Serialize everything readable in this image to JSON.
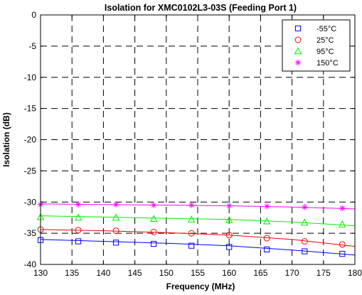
{
  "chart_data": {
    "type": "line",
    "title": "Isolation for XMC0102L3-03S (Feeding Port 1)",
    "xlabel": "Frequency (MHz)",
    "ylabel": "Isolation (dB)",
    "xlim": [
      130,
      180
    ],
    "ylim": [
      -40,
      0
    ],
    "xticks": [
      130,
      135,
      140,
      145,
      150,
      155,
      160,
      165,
      170,
      175,
      180
    ],
    "yticks": [
      0,
      -5,
      -10,
      -15,
      -20,
      -25,
      -30,
      -35,
      -40
    ],
    "xtick_labels": [
      "130",
      "135",
      "140",
      "145",
      "150",
      "155",
      "160",
      "165",
      "170",
      "175",
      "180"
    ],
    "ytick_labels": [
      "0",
      "-5",
      "-10",
      "-15",
      "-20",
      "-25",
      "-30",
      "-35",
      "-40"
    ],
    "grid": true,
    "legend_position": "top-right",
    "x": [
      130,
      136,
      142,
      148,
      154,
      160,
      166,
      172,
      178
    ],
    "series": [
      {
        "name": "-55°C",
        "color": "#0000ff",
        "marker": "square",
        "values": [
          -36.1,
          -36.3,
          -36.5,
          -36.7,
          -37.0,
          -37.2,
          -37.6,
          -37.9,
          -38.3
        ],
        "trend": [
          [
            130,
            -36.0
          ],
          [
            140,
            -36.3
          ],
          [
            150,
            -36.6
          ],
          [
            160,
            -37.0
          ],
          [
            170,
            -37.7
          ],
          [
            180,
            -38.5
          ]
        ]
      },
      {
        "name": "25°C",
        "color": "#ff0000",
        "marker": "circle",
        "values": [
          -34.4,
          -34.5,
          -34.6,
          -34.8,
          -35.0,
          -35.3,
          -35.8,
          -36.3,
          -36.8
        ],
        "trend": [
          [
            130,
            -34.4
          ],
          [
            140,
            -34.6
          ],
          [
            150,
            -34.9
          ],
          [
            160,
            -35.3
          ],
          [
            170,
            -36.0
          ],
          [
            180,
            -37.1
          ]
        ]
      },
      {
        "name": "95°C",
        "color": "#00ee00",
        "marker": "triangle",
        "values": [
          -32.4,
          -32.5,
          -32.5,
          -32.7,
          -32.8,
          -32.9,
          -33.1,
          -33.3,
          -33.6
        ],
        "trend": [
          [
            130,
            -32.2
          ],
          [
            140,
            -32.4
          ],
          [
            150,
            -32.6
          ],
          [
            160,
            -32.8
          ],
          [
            170,
            -33.2
          ],
          [
            180,
            -33.8
          ]
        ]
      },
      {
        "name": "150°C",
        "color": "#ff00ff",
        "marker": "asterisk",
        "values": [
          -30.4,
          -30.4,
          -30.4,
          -30.5,
          -30.5,
          -30.6,
          -30.7,
          -30.8,
          -31.0
        ],
        "trend": [
          [
            130,
            -30.3
          ],
          [
            140,
            -30.4
          ],
          [
            150,
            -30.5
          ],
          [
            160,
            -30.6
          ],
          [
            170,
            -30.8
          ],
          [
            180,
            -31.1
          ]
        ]
      }
    ]
  }
}
